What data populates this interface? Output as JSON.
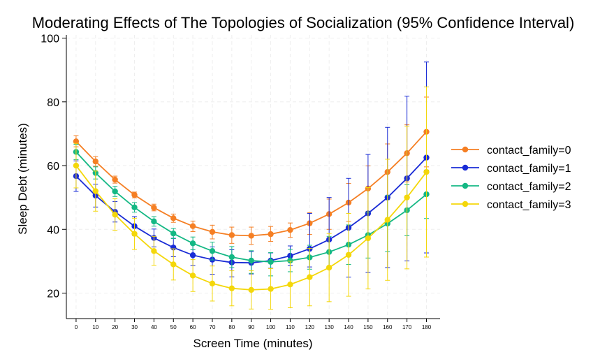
{
  "chart_data": {
    "type": "line",
    "title": "Moderating Effects of The Topologies of Socialization (95% Confidence Interval)",
    "xlabel": "Screen Time (minutes)",
    "ylabel": "Sleep Debt (minutes)",
    "xlim": [
      -5,
      187
    ],
    "ylim": [
      12,
      101
    ],
    "x": [
      0,
      10,
      20,
      30,
      40,
      50,
      60,
      70,
      80,
      90,
      100,
      110,
      120,
      130,
      140,
      150,
      160,
      170,
      180
    ],
    "xticks": [
      "0",
      "10",
      "20",
      "30",
      "40",
      "50",
      "60",
      "70",
      "80",
      "90",
      "100",
      "110",
      "120",
      "130",
      "140",
      "150",
      "160",
      "170",
      "180"
    ],
    "yticks": [
      20,
      40,
      60,
      80,
      100
    ],
    "grid": true,
    "legend": "right",
    "series": [
      {
        "name": "contact_family=0",
        "color": "#f57f24",
        "values": [
          67.6,
          61.3,
          55.6,
          50.8,
          46.8,
          43.5,
          41.0,
          39.2,
          38.2,
          38.0,
          38.5,
          39.8,
          41.9,
          44.8,
          48.4,
          52.8,
          58.0,
          63.9,
          70.6
        ],
        "lower": [
          65.9,
          59.8,
          54.5,
          49.9,
          45.8,
          42.2,
          39.3,
          37.0,
          35.6,
          35.3,
          36.2,
          37.5,
          38.4,
          40.0,
          42.5,
          45.6,
          49.3,
          54.9,
          59.6
        ],
        "upper": [
          69.4,
          62.8,
          56.7,
          51.7,
          47.9,
          44.8,
          42.6,
          41.3,
          40.7,
          40.7,
          40.9,
          42.0,
          45.2,
          49.5,
          54.4,
          59.9,
          66.8,
          72.8,
          81.5
        ]
      },
      {
        "name": "contact_family=1",
        "color": "#1a2cd6",
        "values": [
          56.7,
          50.6,
          45.5,
          41.0,
          37.3,
          34.3,
          31.9,
          30.5,
          29.6,
          29.5,
          30.2,
          31.7,
          33.9,
          36.8,
          40.5,
          45.0,
          50.0,
          56.0,
          62.5
        ],
        "lower": [
          51.9,
          47.0,
          42.3,
          38.1,
          34.5,
          31.4,
          28.6,
          25.9,
          25.1,
          26.0,
          27.8,
          28.6,
          28.2,
          28.3,
          25.0,
          26.5,
          28.0,
          30.1,
          32.6
        ],
        "upper": [
          61.5,
          54.2,
          48.7,
          44.0,
          40.1,
          37.2,
          35.3,
          34.5,
          33.6,
          33.0,
          32.6,
          34.8,
          45.0,
          50.0,
          56.0,
          63.5,
          72.0,
          81.8,
          92.5
        ]
      },
      {
        "name": "contact_family=2",
        "color": "#14b884",
        "values": [
          64.3,
          57.7,
          51.9,
          46.9,
          42.5,
          38.7,
          35.6,
          33.2,
          31.3,
          30.2,
          29.8,
          30.2,
          31.2,
          32.9,
          35.2,
          38.2,
          41.8,
          46.0,
          51.0
        ],
        "lower": [
          61.9,
          55.8,
          50.3,
          45.4,
          41.0,
          37.1,
          33.6,
          30.4,
          28.0,
          26.2,
          25.4,
          26.7,
          27.5,
          28.0,
          29.0,
          31.0,
          33.0,
          38.0,
          43.4
        ],
        "upper": [
          66.7,
          59.6,
          53.5,
          48.4,
          44.0,
          40.3,
          37.6,
          36.0,
          34.6,
          33.3,
          32.7,
          33.7,
          35.0,
          37.8,
          41.4,
          45.4,
          50.6,
          54.0,
          58.6
        ]
      },
      {
        "name": "contact_family=3",
        "color": "#f4d70a",
        "values": [
          60.0,
          52.0,
          44.6,
          38.6,
          33.2,
          29.0,
          25.5,
          23.0,
          21.5,
          21.0,
          21.3,
          22.7,
          25.0,
          28.0,
          32.0,
          37.2,
          43.0,
          50.0,
          58.0
        ],
        "lower": [
          53.0,
          45.7,
          39.7,
          33.7,
          28.7,
          24.1,
          20.5,
          17.5,
          16.0,
          15.0,
          14.9,
          15.4,
          16.0,
          17.3,
          19.0,
          21.3,
          24.0,
          27.6,
          31.3
        ],
        "upper": [
          67.0,
          58.3,
          49.6,
          43.5,
          37.8,
          33.9,
          30.5,
          28.5,
          27.0,
          27.0,
          27.7,
          30.0,
          34.0,
          38.7,
          45.0,
          53.1,
          62.0,
          72.4,
          84.7
        ]
      }
    ]
  }
}
